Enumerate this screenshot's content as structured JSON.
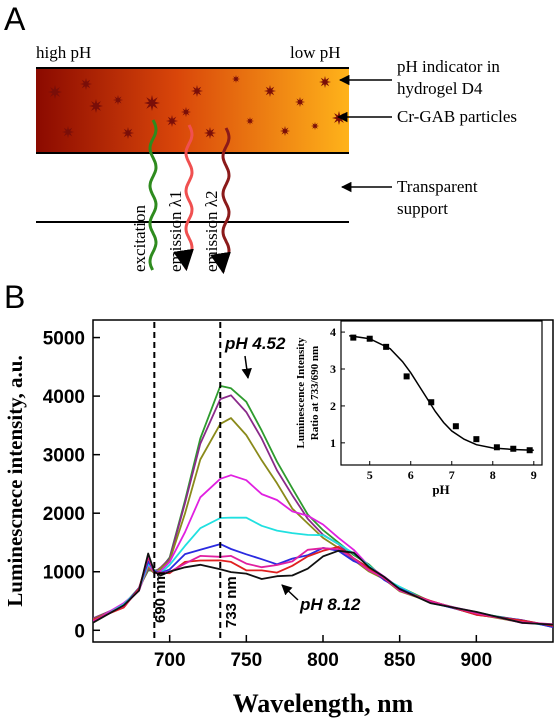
{
  "panel_a": {
    "letter": "A",
    "high_ph": "high pH",
    "low_ph": "low pH",
    "label_indicator_1": "pH indicator in",
    "label_indicator_2": "hydrogel D4",
    "label_particles": "Cr-GAB particles",
    "label_support_1": "Transparent",
    "label_support_2": "support",
    "excitation": "excitation",
    "emission1": "emission λ1",
    "emission2": "emission λ2",
    "colors": {
      "gradient_start": "#8b0a00",
      "gradient_mid": "#d9460a",
      "gradient_end": "#ffb31a",
      "particle": "#7a0e08",
      "excitation_wave": "#2e8b1e",
      "emission1_wave": "#f05050",
      "emission2_wave": "#8b1a1a"
    }
  },
  "panel_b": {
    "letter": "B"
  },
  "chart_data": [
    {
      "type": "line",
      "xlabel": "Wavelength, nm",
      "ylabel": "Luminescnece intensity, a.u.",
      "xlim": [
        650,
        950
      ],
      "ylim": [
        -200,
        5300
      ],
      "x_ticks": [
        700,
        750,
        800,
        850,
        900
      ],
      "y_ticks": [
        0,
        1000,
        2000,
        3000,
        4000,
        5000
      ],
      "annotations": {
        "ph_high": "pH 4.52",
        "ph_low": "pH 8.12",
        "line_690": "690 nm",
        "line_733": "733 nm"
      },
      "vertical_lines": [
        690,
        733
      ],
      "x": [
        650,
        670,
        680,
        686,
        690,
        694,
        700,
        710,
        720,
        733,
        740,
        750,
        760,
        770,
        780,
        790,
        800,
        810,
        820,
        830,
        840,
        850,
        870,
        900,
        930,
        950
      ],
      "series": [
        {
          "color": "#2e9b2e",
          "values": [
            180,
            450,
            700,
            1050,
            1000,
            1050,
            1250,
            2200,
            3300,
            4150,
            4150,
            3900,
            3400,
            2900,
            2400,
            2000,
            1700,
            1500,
            1300,
            1100,
            900,
            720,
            500,
            300,
            150,
            80
          ]
        },
        {
          "color": "#8a2a8a",
          "values": [
            180,
            450,
            700,
            1050,
            1000,
            1050,
            1250,
            2150,
            3200,
            3950,
            4000,
            3750,
            3250,
            2750,
            2300,
            1900,
            1650,
            1450,
            1250,
            1050,
            870,
            700,
            480,
            290,
            150,
            80
          ]
        },
        {
          "color": "#8a8a1a",
          "values": [
            170,
            440,
            700,
            1050,
            1000,
            1040,
            1200,
            2000,
            2900,
            3550,
            3600,
            3350,
            2900,
            2500,
            2100,
            1800,
            1600,
            1400,
            1200,
            1020,
            850,
            690,
            470,
            280,
            140,
            80
          ]
        },
        {
          "color": "#e020e0",
          "values": [
            170,
            440,
            700,
            1100,
            1000,
            1020,
            1150,
            1700,
            2250,
            2600,
            2650,
            2550,
            2350,
            2200,
            2050,
            1950,
            1800,
            1600,
            1350,
            1120,
            900,
            720,
            490,
            290,
            150,
            80
          ]
        },
        {
          "color": "#20e0e0",
          "values": [
            160,
            430,
            700,
            1150,
            1000,
            1000,
            1100,
            1450,
            1750,
            1900,
            1950,
            1900,
            1800,
            1700,
            1650,
            1650,
            1600,
            1500,
            1300,
            1100,
            900,
            720,
            490,
            290,
            150,
            80
          ]
        },
        {
          "color": "#2a2ae0",
          "values": [
            160,
            420,
            700,
            1200,
            1000,
            980,
            1050,
            1280,
            1400,
            1450,
            1400,
            1300,
            1200,
            1150,
            1200,
            1300,
            1400,
            1350,
            1200,
            1050,
            880,
            700,
            480,
            290,
            150,
            80
          ]
        },
        {
          "color": "#e02020",
          "values": [
            150,
            410,
            700,
            1250,
            1000,
            960,
            1000,
            1150,
            1200,
            1200,
            1150,
            1050,
            1000,
            1000,
            1100,
            1250,
            1380,
            1400,
            1250,
            1050,
            880,
            700,
            480,
            290,
            150,
            80
          ]
        },
        {
          "color": "#e020a0",
          "values": [
            150,
            410,
            700,
            1250,
            1000,
            960,
            1000,
            1150,
            1250,
            1280,
            1250,
            1150,
            1080,
            1100,
            1200,
            1350,
            1420,
            1380,
            1220,
            1040,
            870,
            700,
            480,
            290,
            150,
            80
          ]
        },
        {
          "color": "#111111",
          "values": [
            150,
            400,
            700,
            1300,
            1000,
            950,
            980,
            1100,
            1100,
            1050,
            1000,
            950,
            900,
            900,
            950,
            1050,
            1250,
            1380,
            1300,
            1100,
            900,
            700,
            480,
            290,
            150,
            80
          ]
        }
      ]
    },
    {
      "type": "scatter",
      "xlabel": "pH",
      "ylabel_1": "Luminescence Intensity",
      "ylabel_2": "Ratio at 733/690 nm",
      "xlim": [
        4.3,
        9.2
      ],
      "ylim": [
        0.4,
        4.3
      ],
      "x_ticks": [
        5,
        6,
        7,
        8,
        9
      ],
      "y_ticks": [
        1,
        2,
        3,
        4
      ],
      "points": [
        [
          4.6,
          3.85
        ],
        [
          5.0,
          3.82
        ],
        [
          5.4,
          3.6
        ],
        [
          5.9,
          2.8
        ],
        [
          6.5,
          2.1
        ],
        [
          7.1,
          1.45
        ],
        [
          7.6,
          1.1
        ],
        [
          8.1,
          0.88
        ],
        [
          8.5,
          0.84
        ],
        [
          8.9,
          0.8
        ]
      ],
      "fit_x": [
        4.5,
        5.0,
        5.5,
        5.8,
        6.0,
        6.2,
        6.4,
        6.6,
        6.8,
        7.0,
        7.3,
        7.6,
        8.0,
        8.5,
        9.0
      ],
      "fit_y": [
        3.9,
        3.82,
        3.55,
        3.2,
        2.9,
        2.55,
        2.2,
        1.85,
        1.55,
        1.32,
        1.1,
        0.95,
        0.86,
        0.82,
        0.8
      ]
    }
  ]
}
